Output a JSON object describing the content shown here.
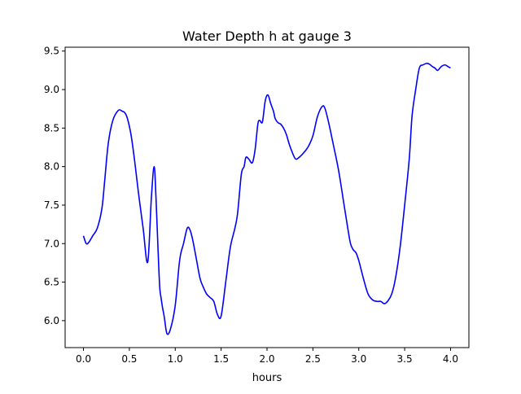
{
  "chart_data": {
    "type": "line",
    "title": "Water Depth h at gauge 3",
    "xlabel": "hours",
    "ylabel": "",
    "xlim": [
      -0.2,
      4.2
    ],
    "ylim": [
      5.65,
      9.55
    ],
    "xticks": [
      0.0,
      0.5,
      1.0,
      1.5,
      2.0,
      2.5,
      3.0,
      3.5,
      4.0
    ],
    "xtick_labels": [
      "0.0",
      "0.5",
      "1.0",
      "1.5",
      "2.0",
      "2.5",
      "3.0",
      "3.5",
      "4.0"
    ],
    "yticks": [
      6.0,
      6.5,
      7.0,
      7.5,
      8.0,
      8.5,
      9.0,
      9.5
    ],
    "ytick_labels": [
      "6.0",
      "6.5",
      "7.0",
      "7.5",
      "8.0",
      "8.5",
      "9.0",
      "9.5"
    ],
    "grid": false,
    "series": [
      {
        "name": "",
        "color": "#0000ff",
        "x": [
          0.0,
          0.03,
          0.06,
          0.1,
          0.15,
          0.2,
          0.23,
          0.27,
          0.32,
          0.38,
          0.42,
          0.45,
          0.48,
          0.52,
          0.56,
          0.6,
          0.65,
          0.7,
          0.74,
          0.77,
          0.79,
          0.81,
          0.83,
          0.845,
          0.86,
          0.88,
          0.91,
          0.95,
          1.0,
          1.04,
          1.06,
          1.09,
          1.13,
          1.16,
          1.19,
          1.23,
          1.27,
          1.3,
          1.34,
          1.38,
          1.42,
          1.46,
          1.5,
          1.55,
          1.6,
          1.65,
          1.68,
          1.72,
          1.75,
          1.77,
          1.8,
          1.84,
          1.87,
          1.9,
          1.92,
          1.95,
          1.98,
          2.01,
          2.04,
          2.07,
          2.09,
          2.12,
          2.15,
          2.18,
          2.21,
          2.24,
          2.27,
          2.31,
          2.35,
          2.4,
          2.45,
          2.5,
          2.55,
          2.6,
          2.63,
          2.67,
          2.72,
          2.78,
          2.84,
          2.88,
          2.91,
          2.94,
          2.97,
          3.0,
          3.05,
          3.1,
          3.15,
          3.2,
          3.24,
          3.28,
          3.32,
          3.36,
          3.4,
          3.45,
          3.5,
          3.55,
          3.58,
          3.62,
          3.66,
          3.7,
          3.74,
          3.77,
          3.8,
          3.83,
          3.86,
          3.9,
          3.94,
          3.97,
          4.0
        ],
        "y": [
          7.1,
          7.0,
          7.02,
          7.1,
          7.2,
          7.45,
          7.8,
          8.3,
          8.6,
          8.73,
          8.72,
          8.7,
          8.62,
          8.4,
          8.05,
          7.65,
          7.2,
          6.76,
          7.6,
          8.0,
          7.6,
          7.0,
          6.45,
          6.3,
          6.18,
          6.05,
          5.83,
          5.9,
          6.2,
          6.7,
          6.87,
          7.0,
          7.2,
          7.18,
          7.05,
          6.8,
          6.55,
          6.45,
          6.35,
          6.3,
          6.25,
          6.08,
          6.06,
          6.5,
          6.95,
          7.2,
          7.4,
          7.9,
          8.0,
          8.12,
          8.1,
          8.05,
          8.22,
          8.55,
          8.6,
          8.58,
          8.85,
          8.93,
          8.82,
          8.72,
          8.62,
          8.57,
          8.55,
          8.5,
          8.42,
          8.3,
          8.2,
          8.1,
          8.12,
          8.18,
          8.26,
          8.4,
          8.65,
          8.78,
          8.76,
          8.58,
          8.3,
          7.95,
          7.5,
          7.2,
          7.0,
          6.92,
          6.88,
          6.78,
          6.55,
          6.35,
          6.27,
          6.25,
          6.25,
          6.22,
          6.26,
          6.35,
          6.55,
          6.95,
          7.5,
          8.1,
          8.65,
          9.0,
          9.28,
          9.32,
          9.34,
          9.33,
          9.3,
          9.28,
          9.25,
          9.3,
          9.32,
          9.3,
          9.28
        ]
      }
    ]
  }
}
